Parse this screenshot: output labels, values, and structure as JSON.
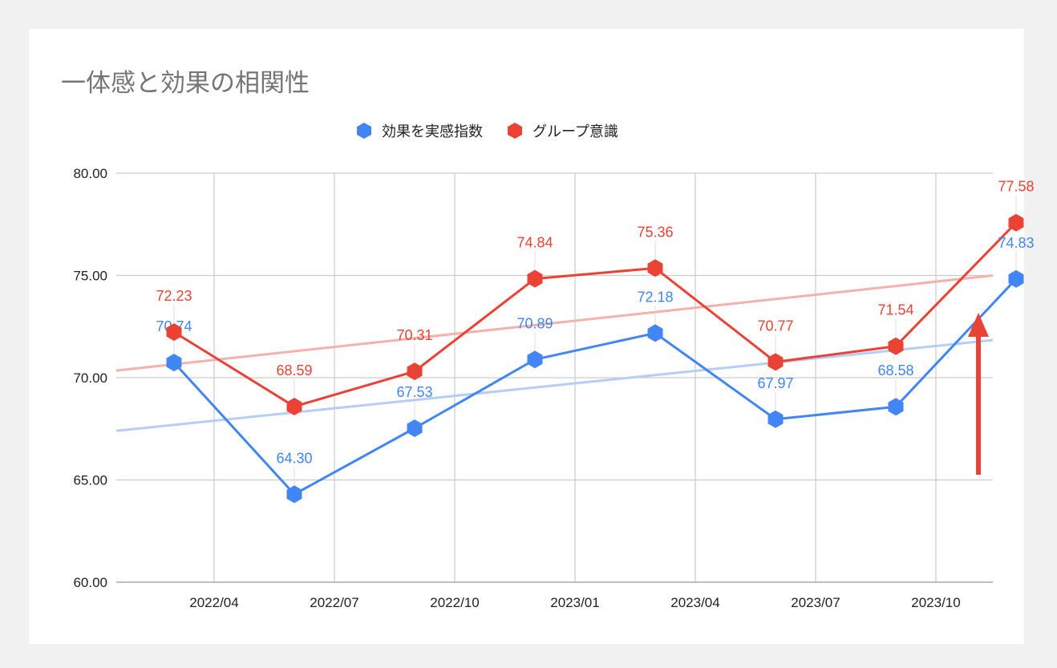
{
  "chart_data": {
    "type": "line",
    "title": "一体感と効果の相関性",
    "xlabel": "",
    "ylabel": "",
    "ylim": [
      60,
      80
    ],
    "yticks": [
      "60.00",
      "65.00",
      "70.00",
      "75.00",
      "80.00"
    ],
    "ytick_values": [
      60,
      65,
      70,
      75,
      80
    ],
    "xticks": [
      "2022/04",
      "2022/07",
      "2022/10",
      "2023/01",
      "2023/04",
      "2023/07",
      "2023/10"
    ],
    "x": [
      "2022/03",
      "2022/06",
      "2022/09",
      "2022/12",
      "2023/03",
      "2023/06",
      "2023/09",
      "2023/12"
    ],
    "grid": true,
    "legend_position": "top",
    "series": [
      {
        "name": "効果を実感指数",
        "color": "#4285f4",
        "trend_color": "#b6cdf8",
        "values": [
          70.74,
          64.3,
          67.53,
          70.89,
          72.18,
          67.97,
          68.58,
          74.83
        ],
        "labels": [
          "70.74",
          "64.30",
          "67.53",
          "70.89",
          "72.18",
          "67.97",
          "68.58",
          "74.83"
        ],
        "trendline": [
          67.4,
          71.84
        ]
      },
      {
        "name": "グループ意識",
        "color": "#ea4335",
        "trend_color": "#f5b1ab",
        "values": [
          72.23,
          68.59,
          70.31,
          74.84,
          75.36,
          70.77,
          71.54,
          77.58
        ],
        "labels": [
          "72.23",
          "68.59",
          "70.31",
          "74.84",
          "75.36",
          "70.77",
          "71.54",
          "77.58"
        ],
        "trendline": [
          70.35,
          75.0
        ]
      }
    ],
    "annotation": {
      "type": "arrow",
      "color": "#ea4335",
      "direction": "up"
    }
  }
}
